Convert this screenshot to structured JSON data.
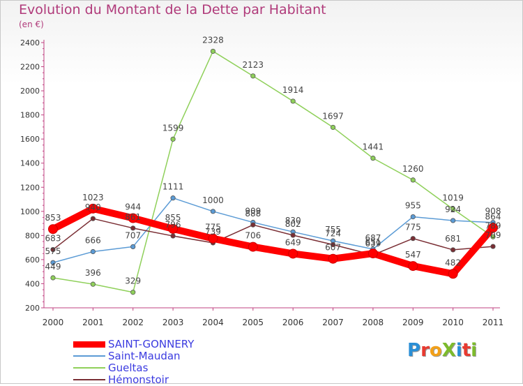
{
  "header": {
    "title": "Evolution du Montant de la Dette par Habitant",
    "unit": "(en €)"
  },
  "logo": {
    "text": "ProXiti",
    "colors": [
      "#2a8fd6",
      "#e83a30",
      "#f2a019",
      "#7dbb2c",
      "#2a8fd6",
      "#e83a30",
      "#7dbb2c"
    ]
  },
  "chart_data": {
    "type": "line",
    "categories": [
      "2000",
      "2001",
      "2002",
      "2003",
      "2004",
      "2005",
      "2006",
      "2007",
      "2008",
      "2009",
      "2010",
      "2011"
    ],
    "ylim": [
      200,
      2400
    ],
    "yticks": [
      200,
      400,
      600,
      800,
      1000,
      1200,
      1400,
      1600,
      1800,
      2000,
      2200,
      2400
    ],
    "xlabel": "",
    "ylabel": "",
    "grid": false,
    "legend_position": "bottom-left",
    "series": [
      {
        "name": "SAINT-GONNERY",
        "color": "#ff0000",
        "values": [
          853,
          1023,
          944,
          855,
          775,
          706,
          649,
          607,
          651,
          547,
          482,
          864
        ],
        "labels": [
          "853",
          "1023",
          "944",
          "855",
          "775",
          "706",
          "649",
          "607",
          "651",
          "547",
          "482",
          "864"
        ]
      },
      {
        "name": "Saint-Maudan",
        "color": "#5b9bd5",
        "values": [
          575,
          666,
          707,
          1111,
          1000,
          909,
          830,
          755,
          687,
          955,
          924,
          908
        ],
        "labels": [
          "575",
          "666",
          "707",
          "1111",
          "1000",
          "909",
          "830",
          "755",
          "687",
          "955",
          "924",
          "908"
        ]
      },
      {
        "name": "Gueltas",
        "color": "#8fd05a",
        "values": [
          449,
          396,
          329,
          1599,
          2328,
          2123,
          1914,
          1697,
          1441,
          1260,
          1019,
          789
        ],
        "labels": [
          "449",
          "396",
          "329",
          "1599",
          "2328",
          "2123",
          "1914",
          "1697",
          "1441",
          "1260",
          "1019",
          "789"
        ]
      },
      {
        "name": "Hémonstoir",
        "color": "#7a2e34",
        "values": [
          683,
          940,
          861,
          796,
          739,
          888,
          802,
          724,
          639,
          775,
          681,
          709
        ],
        "labels": [
          "683",
          "940",
          "861",
          "796",
          "739",
          "888",
          "802",
          "724",
          "639",
          "775",
          "681",
          "709"
        ]
      }
    ]
  }
}
